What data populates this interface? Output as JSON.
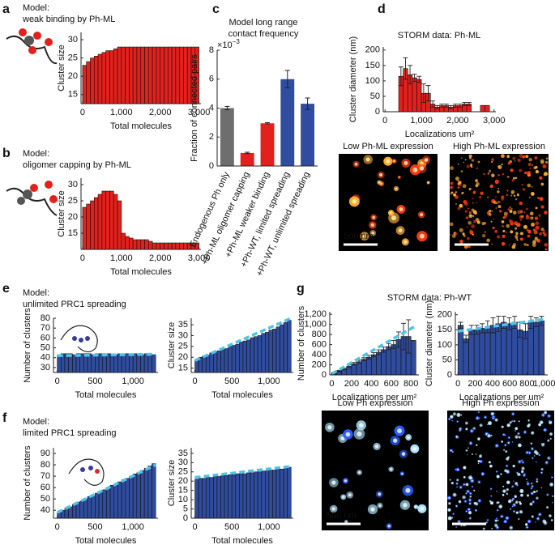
{
  "chart_data": [
    {
      "panel": "a",
      "type": "histogram",
      "title": [
        "Model:",
        "weak binding  by Ph-ML"
      ],
      "xlabel": "Total molecules",
      "ylabel": "Cluster size",
      "color": "#e3201c",
      "bins": [
        0,
        100,
        200,
        300,
        400,
        500,
        600,
        700,
        800,
        900,
        1000,
        1100,
        1200,
        1300,
        1400,
        1500,
        1600,
        1700,
        1800,
        1900,
        2000,
        2100,
        2200,
        2300,
        2400,
        2500,
        2600,
        2700,
        2800,
        2900,
        3000
      ],
      "values": [
        23,
        24,
        25,
        25.5,
        26,
        26.5,
        27,
        27,
        27.5,
        28,
        28,
        28,
        28,
        28,
        28,
        28,
        28,
        28,
        28,
        28,
        28,
        28,
        28,
        28,
        28,
        28,
        28,
        28,
        28,
        28
      ],
      "xlim": [
        -40,
        3050
      ],
      "xticks": [
        0,
        {
          "value": 1000,
          "label": "1,000"
        },
        {
          "value": 2000,
          "label": "2,000"
        },
        {
          "value": 3000,
          "label": "3,000"
        }
      ],
      "ylim": [
        12.5,
        32
      ],
      "yticks": [
        15,
        20,
        25,
        30
      ]
    },
    {
      "panel": "b",
      "type": "histogram",
      "title": [
        "Model:",
        "oligomer capping by Ph-ML"
      ],
      "xlabel": "Total molecules",
      "ylabel": "Cluster size",
      "color": "#e3201c",
      "bins": [
        0,
        100,
        200,
        300,
        400,
        500,
        600,
        700,
        800,
        900,
        1000,
        1100,
        1200,
        1300,
        1400,
        1500,
        1600,
        1700,
        1800,
        1900,
        2000,
        2100,
        2200,
        2300,
        2400,
        2500,
        2600,
        2700,
        2800,
        2900,
        3000
      ],
      "values": [
        23,
        24,
        25,
        26,
        27,
        28,
        28,
        28,
        27,
        25,
        15,
        14,
        13.5,
        13,
        13,
        13,
        13,
        12.5,
        12,
        12,
        12,
        12,
        12,
        12,
        12,
        12,
        12,
        12,
        12,
        12
      ],
      "xlim": [
        -40,
        3050
      ],
      "xticks": [
        0,
        {
          "value": 1000,
          "label": "1,000"
        },
        {
          "value": 2000,
          "label": "2,000"
        },
        {
          "value": 3000,
          "label": "3,000"
        }
      ],
      "ylim": [
        10,
        32
      ],
      "yticks": [
        15,
        20,
        25,
        30
      ]
    },
    {
      "panel": "c",
      "type": "bar",
      "title": [
        "Model long range",
        "contact frequency"
      ],
      "ylabel": "Fraction of connected pairs",
      "y_multiplier": [
        "×10",
        "−3"
      ],
      "categories": [
        "Endogenous Ph only",
        "+Ph-ML oligomer capping",
        "+Ph-ML weaker binding",
        "+Ph-WT, limited spreading",
        "+Ph-WT, unlimited spreading"
      ],
      "values": [
        4.0,
        0.9,
        2.95,
        6.0,
        4.3
      ],
      "errors": [
        0.12,
        0.05,
        0.04,
        0.6,
        0.4
      ],
      "colors": [
        "#6e6e6e",
        "#e3201c",
        "#e3201c",
        "#2f4c9e",
        "#2f4c9e"
      ],
      "ylim": [
        0,
        8
      ],
      "yticks": [
        0,
        2,
        4,
        6,
        8
      ]
    },
    {
      "panel": "d",
      "type": "histogram",
      "title": [
        "STORM data: Ph-ML"
      ],
      "xlabel": "Localizations um²",
      "ylabel": "Cluster diameter (nm)",
      "color": "#e3201c",
      "bins": [
        375,
        500,
        625,
        750,
        875,
        1000,
        1125,
        1250,
        1375,
        1500,
        1625,
        1750,
        1875,
        2000,
        2125,
        2250,
        2375,
        2500,
        2625,
        2750,
        2875
      ],
      "values": [
        115,
        140,
        120,
        110,
        105,
        60,
        60,
        25,
        15,
        20,
        20,
        15,
        20,
        20,
        25,
        25,
        0,
        0,
        20,
        20
      ],
      "errors": [
        30,
        35,
        30,
        12,
        10,
        30,
        25,
        10,
        5,
        5,
        5,
        5,
        5,
        5,
        5,
        5,
        0,
        0,
        0,
        0
      ],
      "xlim": [
        -50,
        3050
      ],
      "xticks": [
        0,
        {
          "value": 1000,
          "label": "1,000"
        },
        {
          "value": 2000,
          "label": "2,000"
        },
        {
          "value": 3000,
          "label": "3,000"
        }
      ],
      "ylim": [
        0,
        210
      ],
      "yticks": [
        0,
        50,
        100,
        150,
        200
      ]
    },
    {
      "panel": "e",
      "type": "histogram",
      "title": [
        "Model:",
        "unlimited PRC1 spreading"
      ],
      "xlabel": "Total molecules",
      "ylabel": "Number of clusters",
      "color": "#2f4c9e",
      "bins": [
        0,
        50,
        100,
        150,
        200,
        250,
        300,
        350,
        400,
        450,
        500,
        550,
        600,
        650,
        700,
        750,
        800,
        850,
        900,
        950,
        1000,
        1050,
        1100,
        1150,
        1200,
        1250,
        1300
      ],
      "values": [
        43,
        44,
        44,
        44,
        43,
        44,
        44,
        44,
        44,
        43,
        44,
        44,
        44,
        44,
        44,
        43,
        44,
        44,
        44,
        44,
        44,
        43,
        43,
        44,
        44,
        43
      ],
      "fit": {
        "x": [
          0,
          1300
        ],
        "y": [
          42,
          43.5
        ],
        "color": "#4fc3e8"
      },
      "xlim": [
        -50,
        1330
      ],
      "xticks": [
        0,
        500,
        {
          "value": 1000,
          "label": "1,000"
        }
      ],
      "ylim": [
        25,
        80
      ],
      "yticks": [
        30,
        40,
        50,
        60,
        70,
        80
      ]
    },
    {
      "type": "histogram",
      "xlabel": "Total molecules",
      "ylabel": "Cluster size",
      "color": "#2f4c9e",
      "bins": [
        0,
        50,
        100,
        150,
        200,
        250,
        300,
        350,
        400,
        450,
        500,
        550,
        600,
        650,
        700,
        750,
        800,
        850,
        900,
        950,
        1000,
        1050,
        1100,
        1150,
        1200,
        1250,
        1300
      ],
      "values": [
        19,
        20,
        20.5,
        21,
        22,
        22.5,
        23,
        23.5,
        24,
        25,
        25.5,
        26,
        27,
        27.5,
        28,
        29,
        29.5,
        30,
        31,
        31.5,
        32.5,
        33,
        34,
        35,
        36,
        37
      ],
      "fit": {
        "x": [
          0,
          1300
        ],
        "y": [
          18.5,
          38
        ],
        "color": "#4fc3e8"
      },
      "xlim": [
        -50,
        1330
      ],
      "xticks": [
        0,
        500,
        {
          "value": 1000,
          "label": "1,000"
        }
      ],
      "ylim": [
        13,
        38
      ],
      "yticks": [
        15,
        20,
        25,
        30,
        35
      ]
    },
    {
      "panel": "f",
      "type": "histogram",
      "title": [
        "Model:",
        "limited PRC1 spreading"
      ],
      "xlabel": "Total molecules",
      "ylabel": "Number of clusters",
      "color": "#2f4c9e",
      "bins": [
        0,
        50,
        100,
        150,
        200,
        250,
        300,
        350,
        400,
        450,
        500,
        550,
        600,
        650,
        700,
        750,
        800,
        850,
        900,
        950,
        1000,
        1050,
        1100,
        1150,
        1200,
        1250,
        1300
      ],
      "values": [
        38,
        40,
        42,
        43,
        45,
        47,
        48,
        50,
        52,
        53,
        55,
        57,
        58,
        60,
        62,
        63,
        65,
        67,
        68,
        70,
        72,
        73,
        75,
        77,
        79,
        81
      ],
      "fit": {
        "x": [
          0,
          1300
        ],
        "y": [
          38,
          80
        ],
        "color": "#4fc3e8"
      },
      "xlim": [
        -50,
        1330
      ],
      "xticks": [
        0,
        500,
        {
          "value": 1000,
          "label": "1,000"
        }
      ],
      "ylim": [
        33,
        95
      ],
      "yticks": [
        40,
        50,
        60,
        70,
        80,
        90
      ]
    },
    {
      "type": "histogram",
      "xlabel": "Total molecules",
      "ylabel": "Cluster size",
      "color": "#2f4c9e",
      "bins": [
        0,
        50,
        100,
        150,
        200,
        250,
        300,
        350,
        400,
        450,
        500,
        550,
        600,
        650,
        700,
        750,
        800,
        850,
        900,
        950,
        1000,
        1050,
        1100,
        1150,
        1200,
        1250,
        1300
      ],
      "values": [
        21,
        21.5,
        21.5,
        22,
        22,
        22.5,
        22.5,
        23,
        23,
        23.5,
        23.5,
        24,
        24,
        24,
        24.5,
        24.5,
        25,
        25,
        25.5,
        25.5,
        26,
        26,
        26.5,
        26.5,
        27,
        27.5
      ],
      "fit": {
        "x": [
          0,
          1300
        ],
        "y": [
          22,
          28
        ],
        "color": "#4fc3e8"
      },
      "xlim": [
        -50,
        1330
      ],
      "xticks": [
        0,
        500,
        {
          "value": 1000,
          "label": "1,000"
        }
      ],
      "ylim": [
        0,
        38
      ],
      "yticks": [
        0,
        5,
        10,
        15,
        20,
        25,
        30,
        35
      ]
    },
    {
      "panel": "g",
      "type": "histogram",
      "title": [
        "STORM data: Ph-WT"
      ],
      "xlabel": "Localizations per um²",
      "ylabel": "Number of clusters",
      "color": "#2f4c9e",
      "bins": [
        0,
        50,
        100,
        150,
        200,
        250,
        300,
        350,
        400,
        450,
        500,
        550,
        600,
        650,
        700,
        750,
        800,
        850
      ],
      "values": [
        30,
        75,
        120,
        170,
        220,
        260,
        310,
        350,
        400,
        450,
        500,
        560,
        600,
        700,
        760,
        760,
        680
      ],
      "errors": [
        10,
        15,
        20,
        25,
        25,
        30,
        30,
        35,
        40,
        45,
        50,
        60,
        80,
        150,
        260,
        330,
        0
      ],
      "fit": {
        "x": [
          0,
          830
        ],
        "y": [
          20,
          950
        ],
        "color": "#4fc3e8"
      },
      "xlim": [
        -20,
        880
      ],
      "xticks": [
        0,
        200,
        400,
        600,
        800
      ],
      "ylim": [
        0,
        1250
      ],
      "yticks": [
        0,
        200,
        400,
        600,
        800,
        {
          "value": 1000,
          "label": "1,000"
        },
        {
          "value": 1200,
          "label": "1,200"
        }
      ]
    },
    {
      "type": "histogram",
      "xlabel": "Localizations per um²",
      "ylabel": "Cluster diameter (nm)",
      "color": "#2f4c9e",
      "bins": [
        0,
        62.5,
        125,
        187.5,
        250,
        312.5,
        375,
        437.5,
        500,
        562.5,
        625,
        687.5,
        750,
        812.5,
        875,
        937.5,
        1000
      ],
      "values": [
        165,
        120,
        150,
        150,
        155,
        160,
        165,
        170,
        175,
        170,
        175,
        150,
        145,
        175,
        175,
        180
      ],
      "errors": [
        10,
        12,
        15,
        15,
        15,
        20,
        25,
        25,
        20,
        20,
        20,
        25,
        25,
        20,
        15,
        15
      ],
      "fit": {
        "x": [
          0,
          1000
        ],
        "y": [
          145,
          185
        ],
        "color": "#4fc3e8"
      },
      "xlim": [
        -30,
        1040
      ],
      "xticks": [
        0,
        200,
        400,
        600,
        800,
        {
          "value": 1000,
          "label": "1,000"
        }
      ],
      "ylim": [
        0,
        210
      ],
      "yticks": [
        0,
        50,
        100,
        150,
        200
      ]
    }
  ],
  "images": [
    {
      "label": "Low Ph-ML expression",
      "label_color": "#d62a1f",
      "scale_bar": "500 nm"
    },
    {
      "label": "High Ph-ML expression",
      "label_color": "#d62a1f"
    },
    {
      "label": "Low Ph expression",
      "label_color": "#2a3fb0",
      "scale_bar": "500 nm"
    },
    {
      "label": "High Ph expression",
      "label_color": "#2a3fb0"
    }
  ]
}
